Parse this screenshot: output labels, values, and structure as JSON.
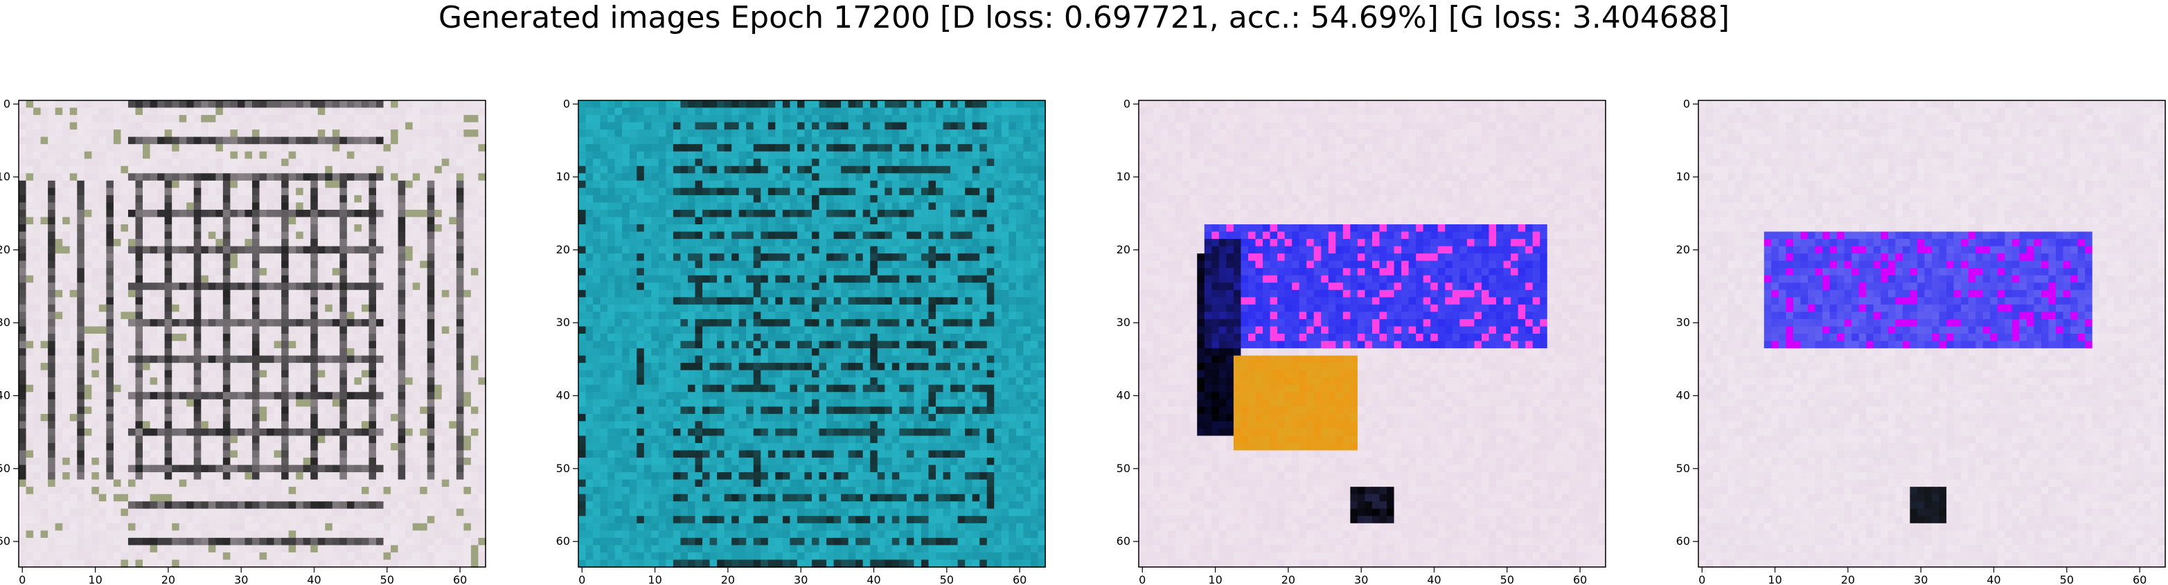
{
  "title": "Generated images Epoch 17200 [D loss: 0.697721, acc.: 54.69%] [G loss: 3.404688]",
  "panels": [
    {
      "name": "generated-image-1",
      "xticks": [
        "0",
        "10",
        "20",
        "30",
        "40",
        "50",
        "60"
      ],
      "yticks": [
        "0",
        "10",
        "20",
        "30",
        "40",
        "50",
        "60"
      ],
      "colors": {
        "base": "#e8dde6",
        "accent": "#111111",
        "accent2": "#6b7c3a"
      }
    },
    {
      "name": "generated-image-2",
      "xticks": [
        "0",
        "10",
        "20",
        "30",
        "40",
        "50",
        "60"
      ],
      "yticks": [
        "0",
        "10",
        "20",
        "30",
        "40",
        "50",
        "60"
      ],
      "colors": {
        "base": "#27b3c4",
        "accent": "#111111",
        "accent2": "#0a6d84"
      }
    },
    {
      "name": "generated-image-3",
      "xticks": [
        "0",
        "10",
        "20",
        "30",
        "40",
        "50",
        "60"
      ],
      "yticks": [
        "0",
        "10",
        "20",
        "30",
        "40",
        "50",
        "60"
      ],
      "colors": {
        "base": "#eadbe8",
        "accent": "#2d2ff0",
        "accent2": "#e2a321"
      }
    },
    {
      "name": "generated-image-4",
      "xticks": [
        "0",
        "10",
        "20",
        "30",
        "40",
        "50",
        "60"
      ],
      "yticks": [
        "0",
        "10",
        "20",
        "30",
        "40",
        "50",
        "60"
      ],
      "colors": {
        "base": "#e9dde9",
        "accent": "#3d3df0",
        "accent2": "#111111"
      }
    }
  ]
}
